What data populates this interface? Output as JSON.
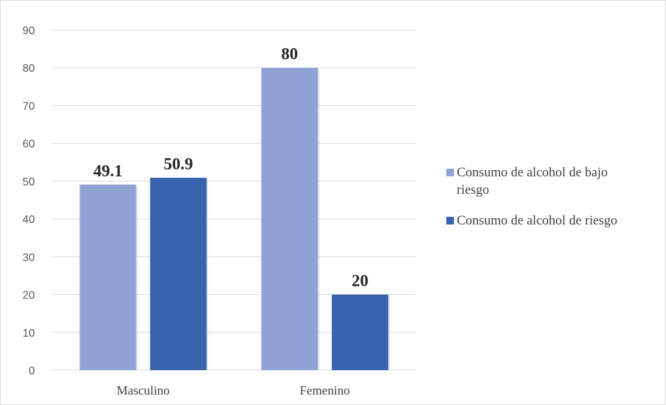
{
  "chart_data": {
    "type": "bar",
    "categories": [
      "Masculino",
      "Femenino"
    ],
    "series": [
      {
        "name": "Consumo de alcohol de bajo riesgo",
        "values": [
          49.1,
          80
        ],
        "labels": [
          "49.1",
          "80"
        ]
      },
      {
        "name": "Consumo de alcohol de riesgo",
        "values": [
          50.9,
          20
        ],
        "labels": [
          "50.9",
          "20"
        ]
      }
    ],
    "ylim": [
      0,
      90
    ],
    "yticks": [
      "0",
      "10",
      "20",
      "30",
      "40",
      "50",
      "60",
      "70",
      "80",
      "90"
    ],
    "grid": true,
    "legend": "right",
    "legend_lines": [
      [
        "Consumo de alcohol de bajo",
        "riesgo"
      ],
      [
        "Consumo de alcohol de riesgo"
      ]
    ],
    "colors": [
      "#8fa3d4",
      "#3a63ad"
    ],
    "gridColor": "#d9d9d9"
  }
}
